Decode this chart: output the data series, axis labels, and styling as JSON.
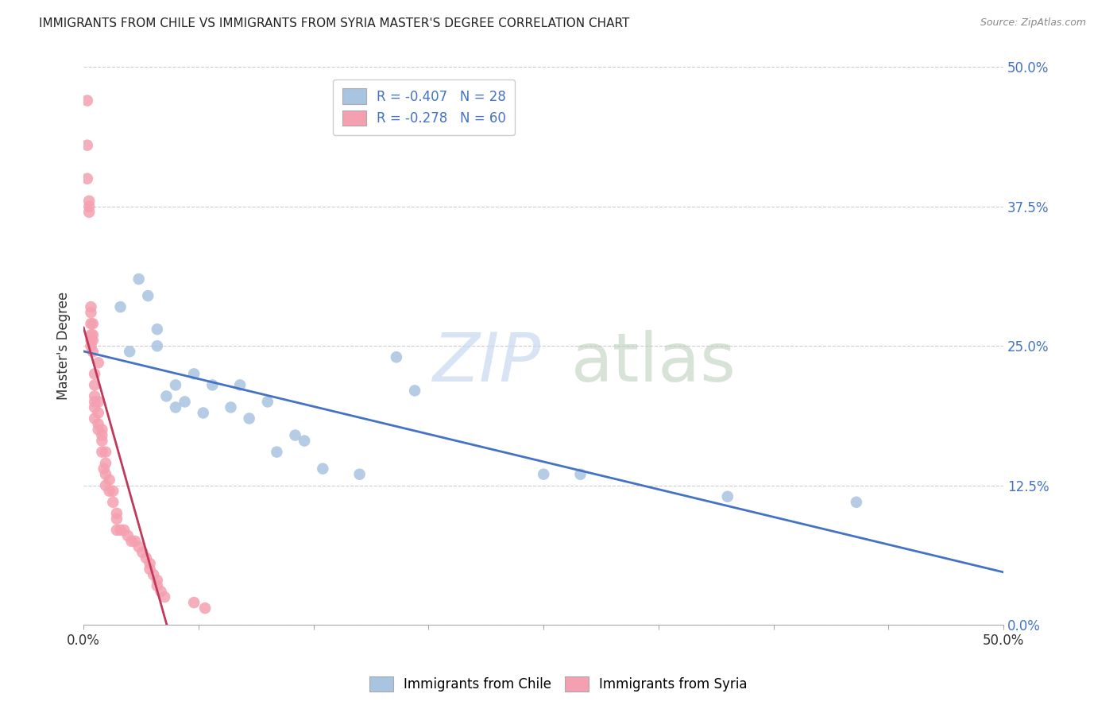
{
  "title": "IMMIGRANTS FROM CHILE VS IMMIGRANTS FROM SYRIA MASTER'S DEGREE CORRELATION CHART",
  "source": "Source: ZipAtlas.com",
  "ylabel": "Master's Degree",
  "xlim": [
    0.0,
    0.5
  ],
  "ylim": [
    0.0,
    0.5
  ],
  "xtick_values": [
    0.0,
    0.0625,
    0.125,
    0.1875,
    0.25,
    0.3125,
    0.375,
    0.4375,
    0.5
  ],
  "xtick_show_labels": [
    0,
    8
  ],
  "ytick_values": [
    0.0,
    0.125,
    0.25,
    0.375,
    0.5
  ],
  "ytick_right_labels": [
    "0.0%",
    "12.5%",
    "25.0%",
    "37.5%",
    "50.0%"
  ],
  "legend_label_chile": "Immigrants from Chile",
  "legend_label_syria": "Immigrants from Syria",
  "chile_R": "-0.407",
  "chile_N": "28",
  "syria_R": "-0.278",
  "syria_N": "60",
  "chile_color": "#a8c4e0",
  "syria_color": "#f4a0b0",
  "chile_line_color": "#4472c4",
  "syria_line_color": "#c0395a",
  "syria_trend_dash_color": "#d0d0e0",
  "background_color": "#ffffff",
  "grid_color": "#cccccc",
  "chile_x": [
    0.02,
    0.025,
    0.03,
    0.035,
    0.04,
    0.04,
    0.045,
    0.05,
    0.05,
    0.055,
    0.06,
    0.065,
    0.07,
    0.08,
    0.085,
    0.09,
    0.1,
    0.105,
    0.115,
    0.12,
    0.13,
    0.15,
    0.17,
    0.18,
    0.25,
    0.27,
    0.35,
    0.42
  ],
  "chile_y": [
    0.285,
    0.245,
    0.31,
    0.295,
    0.25,
    0.265,
    0.205,
    0.215,
    0.195,
    0.2,
    0.225,
    0.19,
    0.215,
    0.195,
    0.215,
    0.185,
    0.2,
    0.155,
    0.17,
    0.165,
    0.14,
    0.135,
    0.24,
    0.21,
    0.135,
    0.135,
    0.115,
    0.11
  ],
  "syria_x": [
    0.002,
    0.002,
    0.002,
    0.003,
    0.003,
    0.003,
    0.004,
    0.004,
    0.004,
    0.004,
    0.004,
    0.004,
    0.005,
    0.005,
    0.005,
    0.005,
    0.006,
    0.006,
    0.006,
    0.006,
    0.006,
    0.006,
    0.008,
    0.008,
    0.008,
    0.008,
    0.008,
    0.01,
    0.01,
    0.01,
    0.01,
    0.011,
    0.012,
    0.012,
    0.012,
    0.012,
    0.014,
    0.014,
    0.016,
    0.016,
    0.018,
    0.018,
    0.018,
    0.02,
    0.022,
    0.024,
    0.026,
    0.028,
    0.03,
    0.032,
    0.034,
    0.036,
    0.036,
    0.038,
    0.04,
    0.04,
    0.042,
    0.044,
    0.06,
    0.066
  ],
  "syria_y": [
    0.47,
    0.43,
    0.4,
    0.38,
    0.375,
    0.37,
    0.28,
    0.285,
    0.27,
    0.26,
    0.255,
    0.25,
    0.27,
    0.255,
    0.26,
    0.245,
    0.225,
    0.215,
    0.205,
    0.2,
    0.195,
    0.185,
    0.235,
    0.2,
    0.19,
    0.18,
    0.175,
    0.175,
    0.17,
    0.165,
    0.155,
    0.14,
    0.155,
    0.145,
    0.135,
    0.125,
    0.13,
    0.12,
    0.12,
    0.11,
    0.1,
    0.095,
    0.085,
    0.085,
    0.085,
    0.08,
    0.075,
    0.075,
    0.07,
    0.065,
    0.06,
    0.055,
    0.05,
    0.045,
    0.04,
    0.035,
    0.03,
    0.025,
    0.02,
    0.015
  ]
}
